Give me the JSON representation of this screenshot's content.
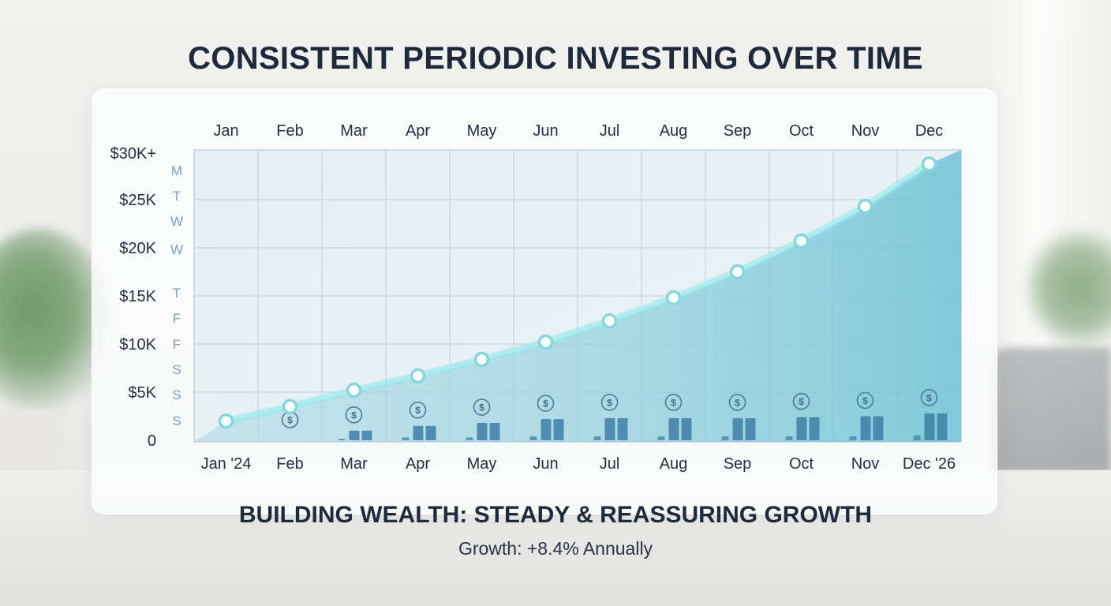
{
  "title": "CONSISTENT PERIODIC INVESTING OVER TIME",
  "subtitle": "BUILDING WEALTH: STEADY & REASSURING GROWTH",
  "growth_text": "Growth: +8.4% Annually",
  "colors": {
    "line": "#7fd6d8",
    "area_top": "#7cc4d6",
    "bar": "#3f7ea6",
    "grid": "#c4d3e0"
  },
  "chart_data": {
    "type": "line",
    "title": "CONSISTENT PERIODIC INVESTING OVER TIME",
    "top_labels": [
      "Jan",
      "Feb",
      "Mar",
      "Apr",
      "May",
      "Jun",
      "Jul",
      "Aug",
      "Sep",
      "Oct",
      "Nov",
      "Dec"
    ],
    "categories": [
      "Jan '24",
      "Feb",
      "Mar",
      "Apr",
      "May",
      "Jun",
      "Jul",
      "Aug",
      "Sep",
      "Oct",
      "Nov",
      "Dec '26"
    ],
    "y_tick_labels": [
      "0",
      "$5K",
      "$10K",
      "$15K",
      "$20K",
      "$25K",
      "$30K+"
    ],
    "y_ticks": [
      0,
      5000,
      10000,
      15000,
      20000,
      25000,
      30000
    ],
    "ylim": [
      0,
      30000
    ],
    "weekday_labels": [
      "M",
      "T",
      "W",
      "W",
      "T",
      "F",
      "F",
      "S",
      "S",
      "S"
    ],
    "series": [
      {
        "values": [
          2000,
          3500,
          5200,
          6700,
          8400,
          10200,
          12400,
          14800,
          17500,
          20700,
          24300,
          28700
        ]
      }
    ],
    "contribution_bars": [
      [
        0,
        0,
        0
      ],
      [
        0,
        0,
        0
      ],
      [
        150,
        1000,
        1000
      ],
      [
        300,
        1500,
        1500
      ],
      [
        300,
        1800,
        1800
      ],
      [
        400,
        2200,
        2200
      ],
      [
        400,
        2300,
        2300
      ],
      [
        400,
        2300,
        2300
      ],
      [
        400,
        2300,
        2300
      ],
      [
        400,
        2400,
        2400
      ],
      [
        400,
        2500,
        2500
      ],
      [
        500,
        2800,
        2800
      ]
    ],
    "coin_symbol": "$",
    "grid": true,
    "area_fill": true
  }
}
